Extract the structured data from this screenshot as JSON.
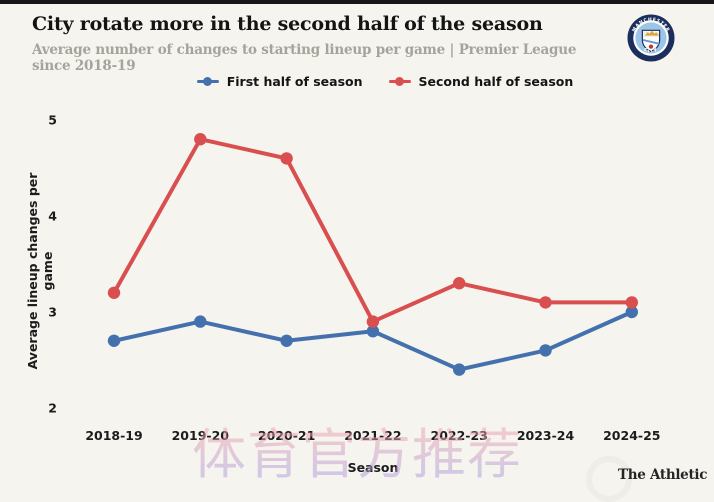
{
  "header": {
    "title": "City rotate more in the second half of the season",
    "subtitle": "Average number of changes to starting lineup per game | Premier League since 2018-19"
  },
  "badge": {
    "club": "Manchester City",
    "ring_text_top": "MANCHESTER",
    "ring_text_bottom": "CITY",
    "colors": {
      "ring": "#1b2e5c",
      "inner": "#9cc6e8",
      "ship": "#d9a83c",
      "band": "#5a9bd0",
      "rose": "#c0392b"
    }
  },
  "chart_data": {
    "type": "line",
    "categories": [
      "2018-19",
      "2019-20",
      "2020-21",
      "2021-22",
      "2022-23",
      "2023-24",
      "2024-25"
    ],
    "series": [
      {
        "name": "First half of season",
        "color": "#4471ae",
        "values": [
          2.7,
          2.9,
          2.7,
          2.8,
          2.4,
          2.6,
          3.0
        ]
      },
      {
        "name": "Second half of season",
        "color": "#d94f4f",
        "values": [
          3.2,
          4.8,
          4.6,
          2.9,
          3.3,
          3.1,
          3.1
        ]
      }
    ],
    "xlabel": "Season",
    "ylabel": "Average lineup changes per game",
    "yticks": [
      2,
      3,
      4,
      5
    ],
    "ylim": [
      2,
      5
    ],
    "grid": false,
    "legend_position": "top-center",
    "marker": "circle-on-line"
  },
  "watermark": {
    "text": "体育官方推荐"
  },
  "footer": {
    "credit": "The Athletic"
  },
  "theme": {
    "background": "#f5f4ee",
    "top_bar": "#161616",
    "tick_color": "#1c1c1c",
    "subtitle_color": "#a6a39b"
  }
}
